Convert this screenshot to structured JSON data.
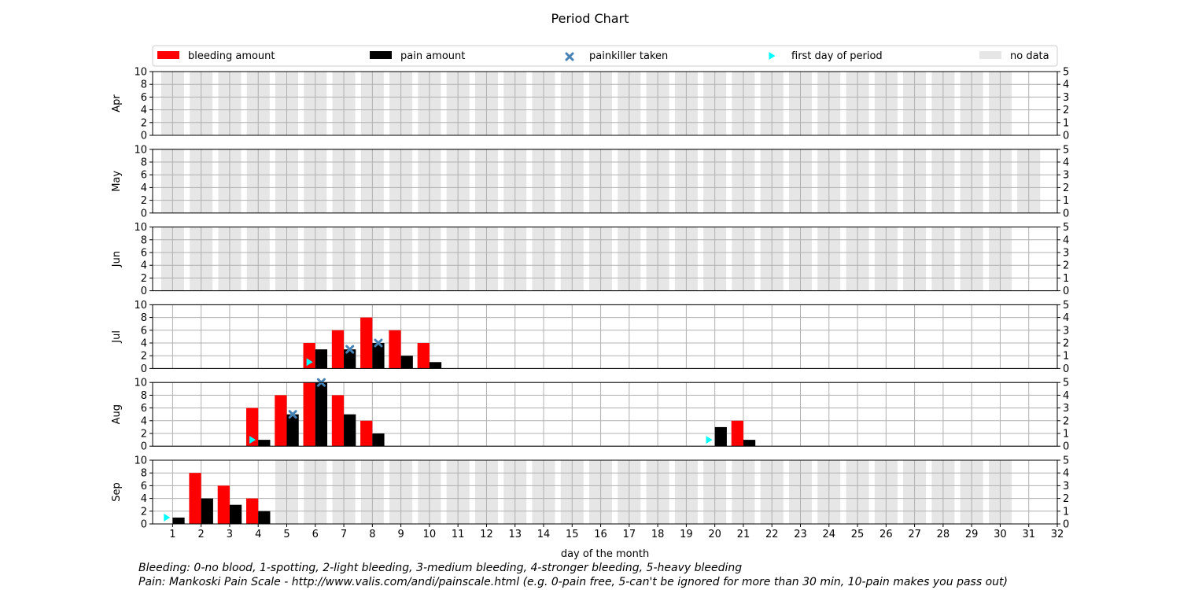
{
  "chart_data": {
    "type": "bar",
    "title": "Period Chart",
    "xlabel": "day of the month",
    "xticks": [
      1,
      2,
      3,
      4,
      5,
      6,
      7,
      8,
      9,
      10,
      11,
      12,
      13,
      14,
      15,
      16,
      17,
      18,
      19,
      20,
      21,
      22,
      23,
      24,
      25,
      26,
      27,
      28,
      29,
      30,
      31,
      32
    ],
    "xlim": [
      0.3,
      32
    ],
    "left_ylim": [
      0,
      10
    ],
    "left_yticks": [
      0,
      2,
      4,
      6,
      8,
      10
    ],
    "right_ylim": [
      0,
      5
    ],
    "right_yticks": [
      0,
      1,
      2,
      3,
      4,
      5
    ],
    "grid": true,
    "legend_placement": "top",
    "legend": [
      {
        "label": "bleeding amount",
        "kind": "rect",
        "color": "#ff0000"
      },
      {
        "label": "pain amount",
        "kind": "rect",
        "color": "#000000"
      },
      {
        "label": "painkiller taken",
        "kind": "x",
        "color": "#4682b4"
      },
      {
        "label": "first day of period",
        "kind": "triangle",
        "color": "#00ffff"
      },
      {
        "label": "no data",
        "kind": "rect",
        "color": "#e6e6e6"
      }
    ],
    "colors": {
      "bleeding": "#ff0000",
      "pain": "#000000",
      "painkiller": "#4682b4",
      "first_day": "#00ffff",
      "no_data": "#e6e6e6",
      "grid": "#b0b0b0"
    },
    "months": [
      {
        "label": "Apr",
        "no_data_days": [
          1,
          2,
          3,
          4,
          5,
          6,
          7,
          8,
          9,
          10,
          11,
          12,
          13,
          14,
          15,
          16,
          17,
          18,
          19,
          20,
          21,
          22,
          23,
          24,
          25,
          26,
          27,
          28,
          29,
          30
        ],
        "bleeding": [],
        "pain": [],
        "painkiller_days": [],
        "first_days": []
      },
      {
        "label": "May",
        "no_data_days": [
          1,
          2,
          3,
          4,
          5,
          6,
          7,
          8,
          9,
          10,
          11,
          12,
          13,
          14,
          15,
          16,
          17,
          18,
          19,
          20,
          21,
          22,
          23,
          24,
          25,
          26,
          27,
          28,
          29,
          30,
          31
        ],
        "bleeding": [],
        "pain": [],
        "painkiller_days": [],
        "first_days": []
      },
      {
        "label": "Jun",
        "no_data_days": [
          1,
          2,
          3,
          4,
          5,
          6,
          7,
          8,
          9,
          10,
          11,
          12,
          13,
          14,
          15,
          16,
          17,
          18,
          19,
          20,
          21,
          22,
          23,
          24,
          25,
          26,
          27,
          28,
          29,
          30
        ],
        "bleeding": [],
        "pain": [],
        "painkiller_days": [],
        "first_days": []
      },
      {
        "label": "Jul",
        "no_data_days": [],
        "bleeding": [
          {
            "day": 6,
            "value": 2
          },
          {
            "day": 7,
            "value": 3
          },
          {
            "day": 8,
            "value": 4
          },
          {
            "day": 9,
            "value": 3
          },
          {
            "day": 10,
            "value": 2
          }
        ],
        "pain": [
          {
            "day": 6,
            "value": 3
          },
          {
            "day": 7,
            "value": 3
          },
          {
            "day": 8,
            "value": 4
          },
          {
            "day": 9,
            "value": 2
          },
          {
            "day": 10,
            "value": 1
          }
        ],
        "painkiller_days": [
          7,
          8
        ],
        "first_days": [
          6
        ]
      },
      {
        "label": "Aug",
        "no_data_days": [],
        "bleeding": [
          {
            "day": 4,
            "value": 3
          },
          {
            "day": 5,
            "value": 4
          },
          {
            "day": 6,
            "value": 5
          },
          {
            "day": 7,
            "value": 4
          },
          {
            "day": 8,
            "value": 2
          },
          {
            "day": 21,
            "value": 2
          }
        ],
        "pain": [
          {
            "day": 4,
            "value": 1
          },
          {
            "day": 5,
            "value": 5
          },
          {
            "day": 6,
            "value": 10
          },
          {
            "day": 7,
            "value": 5
          },
          {
            "day": 8,
            "value": 2
          },
          {
            "day": 20,
            "value": 3
          },
          {
            "day": 21,
            "value": 1
          }
        ],
        "painkiller_days": [
          5,
          6
        ],
        "first_days": [
          4,
          20
        ]
      },
      {
        "label": "Sep",
        "no_data_days": [
          5,
          6,
          7,
          8,
          9,
          10,
          11,
          12,
          13,
          14,
          15,
          16,
          17,
          18,
          19,
          20,
          21,
          22,
          23,
          24,
          25,
          26,
          27,
          28,
          29,
          30
        ],
        "bleeding": [
          {
            "day": 2,
            "value": 4
          },
          {
            "day": 3,
            "value": 3
          },
          {
            "day": 4,
            "value": 2
          }
        ],
        "pain": [
          {
            "day": 1,
            "value": 1
          },
          {
            "day": 2,
            "value": 4
          },
          {
            "day": 3,
            "value": 3
          },
          {
            "day": 4,
            "value": 2
          }
        ],
        "painkiller_days": [],
        "first_days": [
          1
        ]
      }
    ]
  },
  "footnotes": {
    "bleeding": "Bleeding: 0-no blood, 1-spotting, 2-light bleeding, 3-medium bleeding, 4-stronger bleeding, 5-heavy bleeding",
    "pain": "Pain: Mankoski Pain Scale - http://www.valis.com/andi/painscale.html (e.g. 0-pain free, 5-can't be ignored for more than 30 min, 10-pain makes you pass out)"
  }
}
